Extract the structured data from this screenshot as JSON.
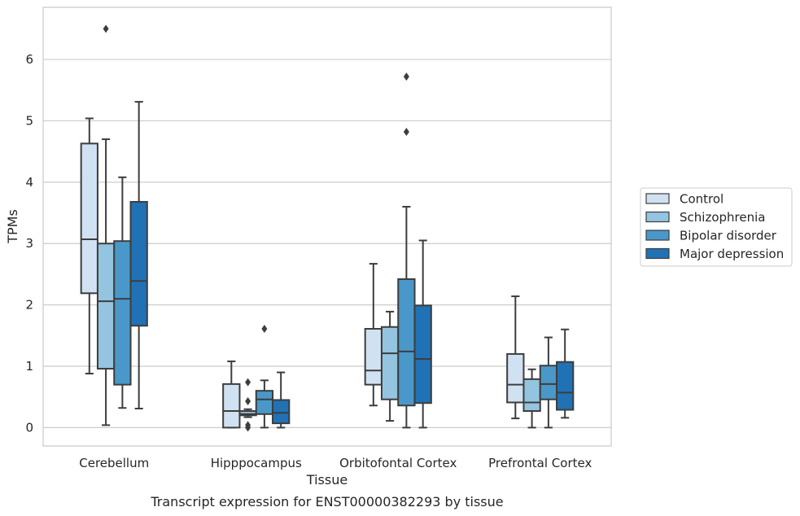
{
  "chart_data": {
    "type": "boxplot",
    "caption": "Transcript expression for ENST00000382293 by tissue",
    "xlabel": "Tissue",
    "ylabel": "TPMs",
    "ylim": [
      -0.3,
      6.85
    ],
    "yticks": [
      0,
      1,
      2,
      3,
      4,
      5,
      6
    ],
    "grid": "horizontal",
    "legend_position": "right",
    "categories": [
      "Cerebellum",
      "Hipppocampus",
      "Orbitofontal Cortex",
      "Prefrontal Cortex"
    ],
    "series": [
      {
        "name": "Control",
        "color": "#d0e1f2",
        "boxes": [
          {
            "whislo": 0.88,
            "q1": 2.19,
            "med": 3.07,
            "q3": 4.63,
            "whishi": 5.04,
            "fliers": []
          },
          {
            "whislo": 0.0,
            "q1": 0.0,
            "med": 0.27,
            "q3": 0.71,
            "whishi": 1.08,
            "fliers": []
          },
          {
            "whislo": 0.36,
            "q1": 0.7,
            "med": 0.93,
            "q3": 1.61,
            "whishi": 2.67,
            "fliers": []
          },
          {
            "whislo": 0.15,
            "q1": 0.41,
            "med": 0.7,
            "q3": 1.2,
            "whishi": 2.14,
            "fliers": []
          }
        ]
      },
      {
        "name": "Schizophrenia",
        "color": "#94c4df",
        "boxes": [
          {
            "whislo": 0.04,
            "q1": 0.96,
            "med": 2.06,
            "q3": 3.0,
            "whishi": 4.7,
            "fliers": [
              6.5
            ]
          },
          {
            "whislo": 0.17,
            "q1": 0.2,
            "med": 0.22,
            "q3": 0.27,
            "whishi": 0.3,
            "fliers": [
              0.74,
              0.43,
              0.04,
              0.0
            ]
          },
          {
            "whislo": 0.11,
            "q1": 0.46,
            "med": 1.21,
            "q3": 1.64,
            "whishi": 1.89,
            "fliers": []
          },
          {
            "whislo": 0.0,
            "q1": 0.27,
            "med": 0.41,
            "q3": 0.79,
            "whishi": 0.95,
            "fliers": []
          }
        ]
      },
      {
        "name": "Bipolar disorder",
        "color": "#4a98c9",
        "boxes": [
          {
            "whislo": 0.32,
            "q1": 0.7,
            "med": 2.1,
            "q3": 3.04,
            "whishi": 4.08,
            "fliers": []
          },
          {
            "whislo": 0.0,
            "q1": 0.22,
            "med": 0.46,
            "q3": 0.6,
            "whishi": 0.77,
            "fliers": [
              1.61
            ]
          },
          {
            "whislo": 0.0,
            "q1": 0.36,
            "med": 1.24,
            "q3": 2.42,
            "whishi": 3.6,
            "fliers": [
              5.72,
              4.82
            ]
          },
          {
            "whislo": 0.0,
            "q1": 0.46,
            "med": 0.71,
            "q3": 1.01,
            "whishi": 1.47,
            "fliers": []
          }
        ]
      },
      {
        "name": "Major depression",
        "color": "#2171b5",
        "boxes": [
          {
            "whislo": 0.31,
            "q1": 1.66,
            "med": 2.39,
            "q3": 3.68,
            "whishi": 5.31,
            "fliers": []
          },
          {
            "whislo": 0.0,
            "q1": 0.07,
            "med": 0.24,
            "q3": 0.45,
            "whishi": 0.9,
            "fliers": []
          },
          {
            "whislo": 0.0,
            "q1": 0.4,
            "med": 1.12,
            "q3": 1.99,
            "whishi": 3.05,
            "fliers": []
          },
          {
            "whislo": 0.16,
            "q1": 0.29,
            "med": 0.57,
            "q3": 1.07,
            "whishi": 1.6,
            "fliers": []
          }
        ]
      }
    ]
  }
}
